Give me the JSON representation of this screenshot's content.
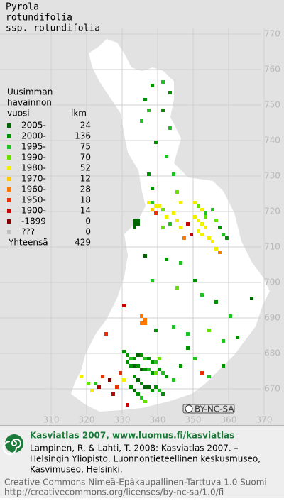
{
  "map": {
    "title": [
      "Pyrola",
      "rotundifolia",
      "ssp. rotundifolia"
    ],
    "legend": {
      "header": [
        "Uusimman",
        "havainnon",
        "vuosi"
      ],
      "count_header": "lkm",
      "items": [
        {
          "label": "2005-",
          "count": 24,
          "color": "#006400"
        },
        {
          "label": "2000-",
          "count": 136,
          "color": "#009000"
        },
        {
          "label": "1995-",
          "count": 75,
          "color": "#22c022"
        },
        {
          "label": "1990-",
          "count": 70,
          "color": "#66e000"
        },
        {
          "label": "1980-",
          "count": 52,
          "color": "#f0f000"
        },
        {
          "label": "1970-",
          "count": 12,
          "color": "#ffc800"
        },
        {
          "label": "1960-",
          "count": 28,
          "color": "#ff7800"
        },
        {
          "label": "1950-",
          "count": 18,
          "color": "#e83000"
        },
        {
          "label": "1900-",
          "count": 14,
          "color": "#c80000"
        },
        {
          "label": "-1899",
          "count": 0,
          "color": "#800000"
        },
        {
          "label": "???",
          "count": 0,
          "color": "#c0c0c0"
        }
      ],
      "total_label": "Yhteensä",
      "total": 429
    },
    "grid": {
      "northing": [
        770,
        760,
        750,
        740,
        730,
        720,
        710,
        700,
        690,
        680,
        670
      ],
      "easting": [
        310,
        320,
        330,
        340,
        350,
        360,
        370
      ]
    },
    "cells": [
      [
        338,
        755,
        1
      ],
      [
        341,
        756,
        2
      ],
      [
        343,
        753,
        1
      ],
      [
        336,
        751,
        1
      ],
      [
        337,
        748,
        2
      ],
      [
        341,
        748,
        1
      ],
      [
        335,
        745,
        2
      ],
      [
        343,
        743,
        2
      ],
      [
        339,
        739,
        1
      ],
      [
        342,
        735,
        2
      ],
      [
        337,
        730,
        1
      ],
      [
        344,
        730,
        2
      ],
      [
        338,
        726,
        1
      ],
      [
        345,
        725,
        3
      ],
      [
        346,
        722,
        4
      ],
      [
        333,
        717,
        0
      ],
      [
        334,
        717,
        0
      ],
      [
        333,
        716,
        0
      ],
      [
        334,
        716,
        0
      ],
      [
        333,
        715,
        0
      ],
      [
        337,
        722,
        4
      ],
      [
        338,
        722,
        2
      ],
      [
        339,
        721,
        4
      ],
      [
        340,
        721,
        4
      ],
      [
        338,
        720,
        5
      ],
      [
        341,
        720,
        3
      ],
      [
        339,
        719,
        7
      ],
      [
        342,
        718,
        4
      ],
      [
        344,
        719,
        4
      ],
      [
        345,
        717,
        4
      ],
      [
        343,
        716,
        2
      ],
      [
        341,
        715,
        3
      ],
      [
        346,
        715,
        4
      ],
      [
        350,
        722,
        4
      ],
      [
        351,
        721,
        3
      ],
      [
        352,
        720,
        4
      ],
      [
        353,
        719,
        2
      ],
      [
        350,
        718,
        4
      ],
      [
        351,
        717,
        4
      ],
      [
        352,
        716,
        4
      ],
      [
        353,
        715,
        4
      ],
      [
        351,
        714,
        4
      ],
      [
        352,
        713,
        4
      ],
      [
        354,
        712,
        4
      ],
      [
        355,
        711,
        4
      ],
      [
        353,
        718,
        3
      ],
      [
        355,
        720,
        2
      ],
      [
        356,
        717,
        3
      ],
      [
        357,
        715,
        1
      ],
      [
        358,
        713,
        2
      ],
      [
        359,
        712,
        1
      ],
      [
        349,
        713,
        8
      ],
      [
        348,
        716,
        8
      ],
      [
        347,
        712,
        6
      ],
      [
        356,
        709,
        4
      ],
      [
        357,
        708,
        6
      ],
      [
        342,
        706,
        1
      ],
      [
        346,
        705,
        2
      ],
      [
        336,
        707,
        0
      ],
      [
        338,
        700,
        2
      ],
      [
        345,
        698,
        3
      ],
      [
        350,
        700,
        1
      ],
      [
        352,
        696,
        2
      ],
      [
        356,
        694,
        1
      ],
      [
        360,
        690,
        2
      ],
      [
        335,
        690,
        6
      ],
      [
        336,
        689,
        6
      ],
      [
        335,
        688,
        6
      ],
      [
        336,
        688,
        6
      ],
      [
        330,
        693,
        8
      ],
      [
        339,
        686,
        1
      ],
      [
        344,
        687,
        2
      ],
      [
        348,
        685,
        2
      ],
      [
        354,
        686,
        3
      ],
      [
        358,
        683,
        2
      ],
      [
        362,
        684,
        1
      ],
      [
        366,
        695,
        0
      ],
      [
        325,
        685,
        7
      ],
      [
        330,
        680,
        1
      ],
      [
        331,
        679,
        1
      ],
      [
        332,
        678,
        2
      ],
      [
        333,
        678,
        1
      ],
      [
        334,
        679,
        0
      ],
      [
        335,
        679,
        1
      ],
      [
        336,
        678,
        2
      ],
      [
        337,
        678,
        1
      ],
      [
        338,
        677,
        1
      ],
      [
        339,
        677,
        2
      ],
      [
        340,
        678,
        3
      ],
      [
        331,
        677,
        1
      ],
      [
        332,
        676,
        1
      ],
      [
        333,
        676,
        0
      ],
      [
        334,
        676,
        1
      ],
      [
        335,
        675,
        0
      ],
      [
        336,
        675,
        1
      ],
      [
        337,
        675,
        2
      ],
      [
        338,
        674,
        1
      ],
      [
        339,
        674,
        3
      ],
      [
        340,
        675,
        1
      ],
      [
        341,
        674,
        2
      ],
      [
        342,
        673,
        1
      ],
      [
        333,
        673,
        1
      ],
      [
        334,
        672,
        0
      ],
      [
        335,
        671,
        1
      ],
      [
        336,
        670,
        0
      ],
      [
        337,
        670,
        0
      ],
      [
        338,
        669,
        1
      ],
      [
        339,
        670,
        1
      ],
      [
        340,
        669,
        2
      ],
      [
        341,
        668,
        1
      ],
      [
        332,
        670,
        1
      ],
      [
        333,
        669,
        0
      ],
      [
        334,
        668,
        1
      ],
      [
        335,
        667,
        2
      ],
      [
        336,
        666,
        3
      ],
      [
        330,
        672,
        4
      ],
      [
        329,
        674,
        7
      ],
      [
        328,
        670,
        7
      ],
      [
        327,
        668,
        8
      ],
      [
        326,
        672,
        9
      ],
      [
        324,
        673,
        7
      ],
      [
        323,
        670,
        8
      ],
      [
        321,
        669,
        4
      ],
      [
        322,
        671,
        2
      ],
      [
        320,
        671,
        3
      ],
      [
        318,
        673,
        4
      ],
      [
        331,
        665,
        8
      ],
      [
        344,
        672,
        2
      ],
      [
        346,
        676,
        1
      ],
      [
        350,
        678,
        2
      ],
      [
        352,
        674,
        7
      ],
      [
        354,
        673,
        2
      ],
      [
        358,
        676,
        1
      ],
      [
        348,
        681,
        1
      ]
    ],
    "license_badge": "BY-NC-SA",
    "footer": {
      "headline": "Kasviatlas 2007, www.luomus.fi/kasviatlas",
      "citation": [
        "Lampinen, R. & Lahti, T. 2008: Kasviatlas 2007. –",
        "Helsingin Yliopisto, Luonnontieteellinen keskusmuseo,",
        "Kasvimuseo, Helsinki."
      ],
      "license": [
        "Creative Commons Nimeä-Epäkaupallinen-Tarttuva 1.0 Suomi",
        "http://creativecommons.org/licenses/by-nc-sa/1.0/fi"
      ]
    }
  }
}
